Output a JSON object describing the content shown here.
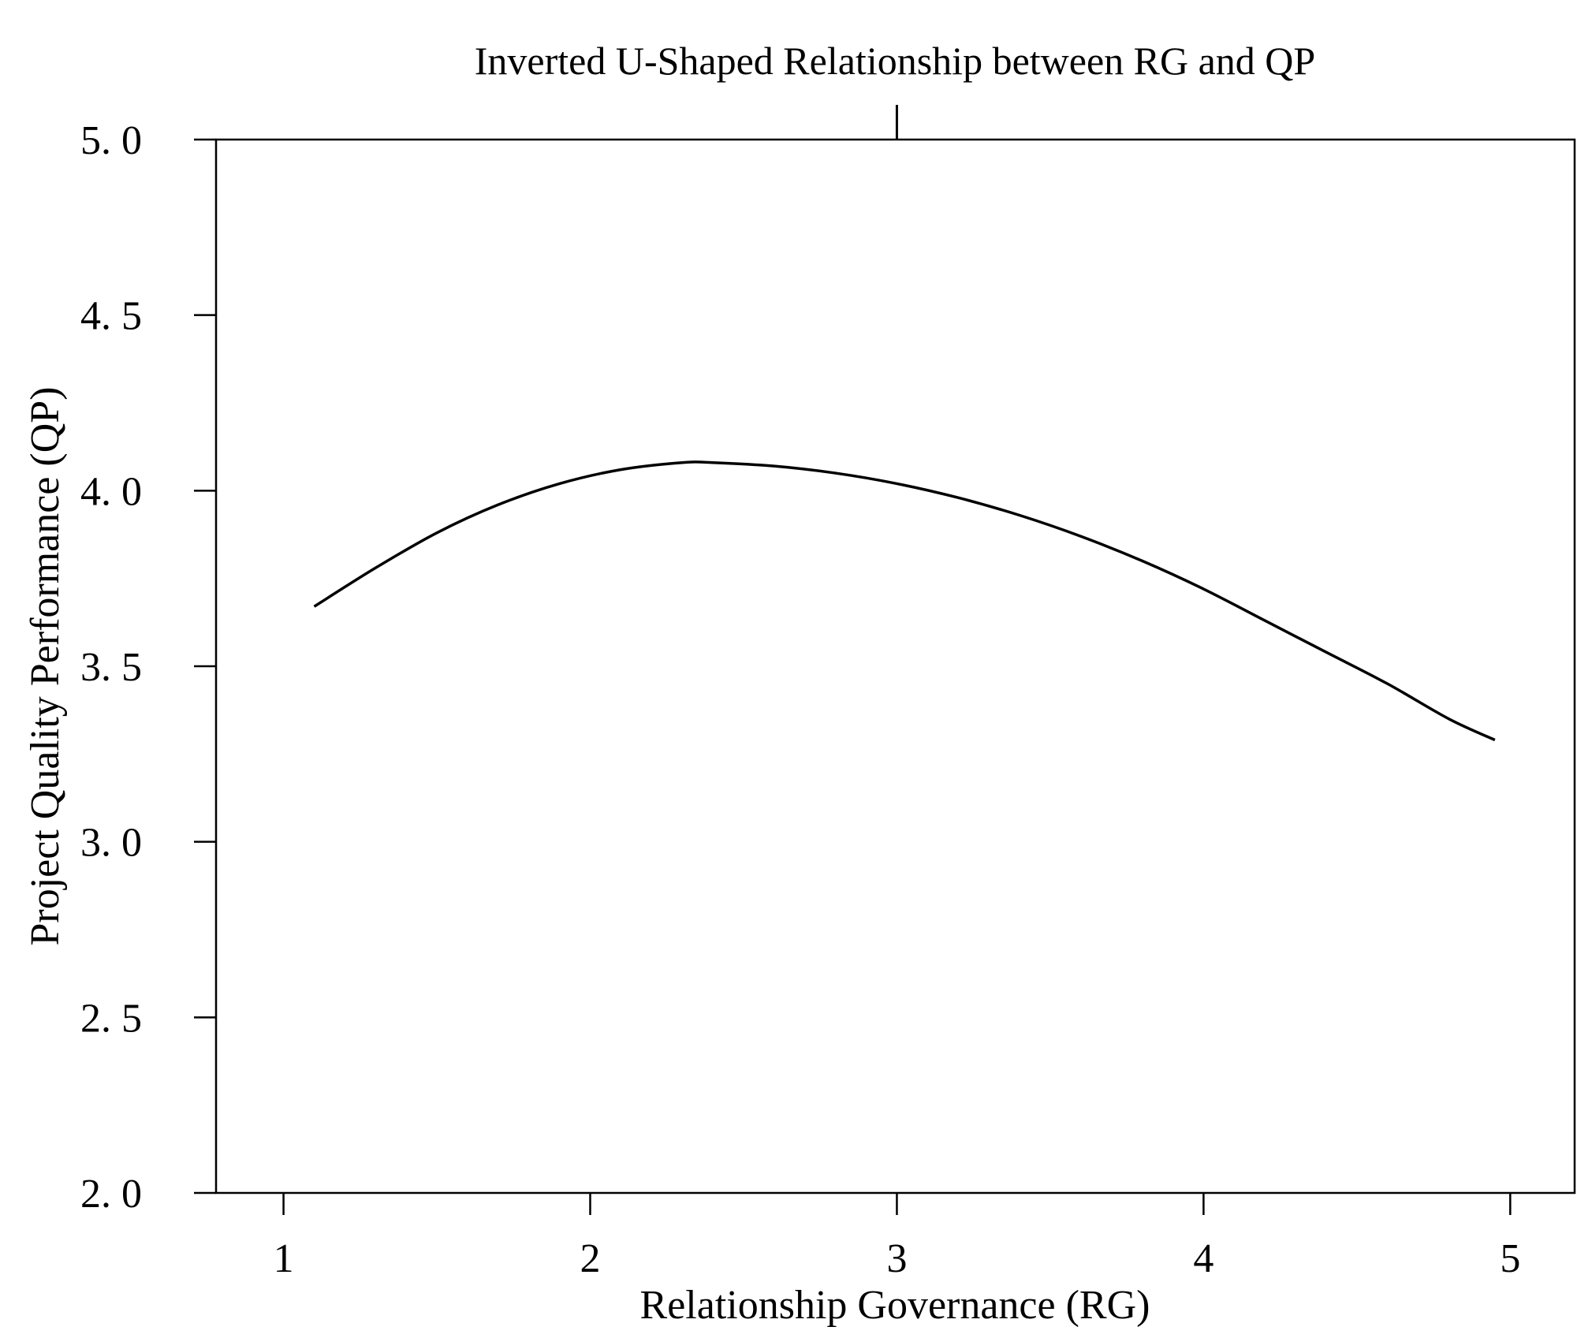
{
  "chart_data": {
    "type": "line",
    "title": "Inverted U-Shaped Relationship between RG and QP",
    "xlabel": "Relationship Governance (RG)",
    "ylabel": "Project Quality Performance (QP)",
    "xlim": [
      0.78,
      5.21
    ],
    "ylim": [
      2.0,
      5.0
    ],
    "x_ticks": [
      1,
      2,
      3,
      4,
      5
    ],
    "x_tick_labels": [
      "1",
      "2",
      "3",
      "4",
      "5"
    ],
    "y_ticks": [
      2.0,
      2.5,
      3.0,
      3.5,
      4.0,
      4.5,
      5.0
    ],
    "y_tick_labels": [
      "2. 0",
      "2. 5",
      "3. 0",
      "3. 5",
      "4. 0",
      "4. 5",
      "5. 0"
    ],
    "grid": false,
    "legend": "none",
    "line_color": "#000000",
    "series": [
      {
        "x": [
          1.1,
          1.3,
          1.5,
          1.7,
          1.9,
          2.1,
          2.3,
          2.4,
          2.6,
          2.8,
          3.0,
          3.2,
          3.4,
          3.6,
          3.8,
          4.0,
          4.2,
          4.4,
          4.6,
          4.8,
          4.95
        ],
        "y": [
          3.67,
          3.78,
          3.88,
          3.96,
          4.02,
          4.06,
          4.08,
          4.08,
          4.07,
          4.05,
          4.02,
          3.98,
          3.93,
          3.87,
          3.8,
          3.72,
          3.63,
          3.54,
          3.45,
          3.35,
          3.29
        ]
      }
    ],
    "annotations": [
      {
        "type": "vertical-tick",
        "x": 3.0,
        "at": "top"
      }
    ]
  }
}
